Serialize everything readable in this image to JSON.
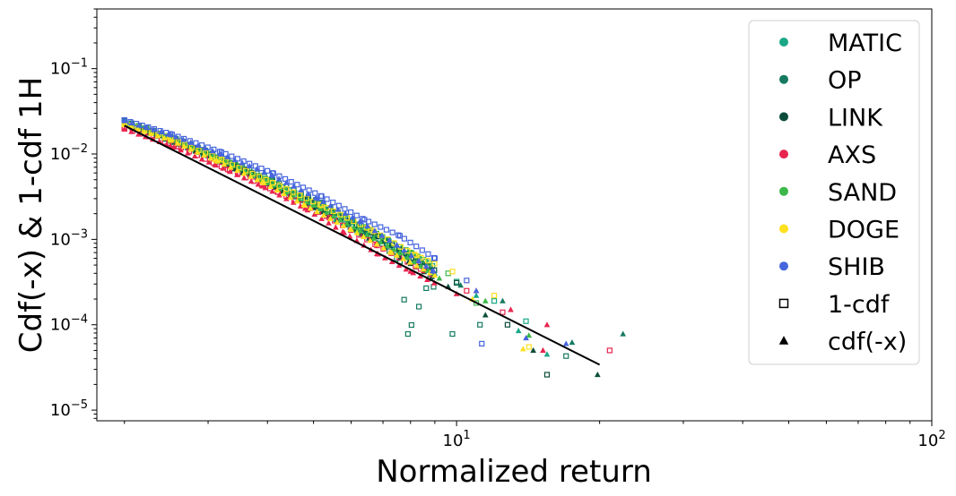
{
  "chart_data": {
    "type": "scatter",
    "title": "",
    "xlabel": "Normalized return",
    "ylabel": "Cdf(-x) & 1-cdf 1H",
    "xscale": "log",
    "yscale": "log",
    "xlim": [
      1.75,
      100
    ],
    "ylim": [
      7.5e-06,
      0.5
    ],
    "x_ticks": [
      {
        "value": 10,
        "base": "10",
        "exp": "1"
      },
      {
        "value": 100,
        "base": "10",
        "exp": "2"
      }
    ],
    "y_ticks": [
      {
        "value": 1e-05,
        "base": "10",
        "exp": "−5"
      },
      {
        "value": 0.0001,
        "base": "10",
        "exp": "−4"
      },
      {
        "value": 0.001,
        "base": "10",
        "exp": "−3"
      },
      {
        "value": 0.01,
        "base": "10",
        "exp": "−2"
      },
      {
        "value": 0.1,
        "base": "10",
        "exp": "−1"
      }
    ],
    "grid": false,
    "legend_position": "top-right",
    "series": [
      {
        "name": "MATIC",
        "color": "#1aa886",
        "one_minus_cdf": [
          [
            2.0,
            0.024
          ],
          [
            2.4,
            0.0165
          ],
          [
            3.0,
            0.0098
          ],
          [
            3.8,
            0.0054
          ],
          [
            4.8,
            0.0029
          ],
          [
            6.0,
            0.0016
          ],
          [
            7.2,
            0.00095
          ],
          [
            8.6,
            0.00055
          ],
          [
            10.0,
            0.00032
          ],
          [
            12.0,
            0.00019
          ],
          [
            14.0,
            0.00011
          ]
        ],
        "cdf_neg": [
          [
            2.0,
            0.023
          ],
          [
            2.5,
            0.0148
          ],
          [
            3.1,
            0.0088
          ],
          [
            3.9,
            0.0048
          ],
          [
            4.9,
            0.0025
          ],
          [
            6.1,
            0.0013
          ],
          [
            7.5,
            0.0007
          ],
          [
            9.0,
            0.0004
          ],
          [
            11.0,
            0.00022
          ],
          [
            13.5,
            8.5e-05
          ],
          [
            15.5,
            4.5e-05
          ]
        ]
      },
      {
        "name": "OP",
        "color": "#157a5f",
        "one_minus_cdf": [
          [
            2.0,
            0.0245
          ],
          [
            2.5,
            0.016
          ],
          [
            3.2,
            0.0092
          ],
          [
            4.1,
            0.0049
          ],
          [
            5.2,
            0.0027
          ],
          [
            6.5,
            0.0013
          ],
          [
            7.6,
            0.00055
          ],
          [
            8.8,
            0.00035
          ],
          [
            7.9,
            7.8e-05
          ],
          [
            9.8,
            7.8e-05
          ],
          [
            11.2,
            0.0001
          ],
          [
            17.0,
            4.3e-05
          ]
        ],
        "cdf_neg": [
          [
            2.0,
            0.0225
          ],
          [
            2.5,
            0.0142
          ],
          [
            3.2,
            0.0082
          ],
          [
            4.0,
            0.0046
          ],
          [
            5.1,
            0.0024
          ],
          [
            6.4,
            0.0012
          ],
          [
            8.0,
            0.00065
          ],
          [
            10.2,
            0.00029
          ],
          [
            12.5,
            0.00019
          ],
          [
            17.5,
            6.2e-05
          ],
          [
            22.4,
            7.8e-05
          ]
        ]
      },
      {
        "name": "LINK",
        "color": "#0b4d3a",
        "one_minus_cdf": [
          [
            2.0,
            0.023
          ],
          [
            2.6,
            0.0138
          ],
          [
            3.4,
            0.0075
          ],
          [
            4.3,
            0.0041
          ],
          [
            5.5,
            0.0021
          ],
          [
            6.8,
            0.0011
          ],
          [
            8.2,
            0.00058
          ],
          [
            10.0,
            0.00031
          ],
          [
            12.8,
            0.0001
          ],
          [
            15.5,
            2.6e-05
          ]
        ],
        "cdf_neg": [
          [
            2.0,
            0.022
          ],
          [
            2.6,
            0.0132
          ],
          [
            3.3,
            0.0073
          ],
          [
            4.2,
            0.0039
          ],
          [
            5.3,
            0.002
          ],
          [
            6.6,
            0.001
          ],
          [
            8.0,
            0.00052
          ],
          [
            9.6,
            0.00028
          ],
          [
            11.5,
            0.00013
          ],
          [
            14.5,
            5e-05
          ],
          [
            19.8,
            2.6e-05
          ]
        ]
      },
      {
        "name": "AXS",
        "color": "#e8254f",
        "one_minus_cdf": [
          [
            2.0,
            0.02
          ],
          [
            2.6,
            0.0122
          ],
          [
            3.3,
            0.0066
          ],
          [
            4.2,
            0.0036
          ],
          [
            5.4,
            0.0018
          ],
          [
            6.8,
            0.00085
          ],
          [
            8.4,
            0.00045
          ],
          [
            10.5,
            0.00025
          ],
          [
            12.5,
            0.00014
          ],
          [
            21.0,
            5e-05
          ]
        ],
        "cdf_neg": [
          [
            2.0,
            0.0195
          ],
          [
            2.5,
            0.0125
          ],
          [
            3.1,
            0.0075
          ],
          [
            3.9,
            0.0042
          ],
          [
            4.8,
            0.0023
          ],
          [
            5.8,
            0.0012
          ],
          [
            6.8,
            0.00068
          ],
          [
            8.0,
            0.00042
          ],
          [
            10.0,
            0.00023
          ],
          [
            11.0,
            0.00025
          ],
          [
            13.0,
            0.00015
          ],
          [
            15.5,
            0.0001
          ],
          [
            15.2,
            5e-05
          ]
        ]
      },
      {
        "name": "SAND",
        "color": "#3cb84a",
        "one_minus_cdf": [
          [
            2.0,
            0.0235
          ],
          [
            2.5,
            0.0155
          ],
          [
            3.2,
            0.0088
          ],
          [
            4.0,
            0.005
          ],
          [
            5.1,
            0.0026
          ],
          [
            6.4,
            0.0014
          ],
          [
            8.0,
            0.0007
          ],
          [
            9.6,
            0.0004
          ],
          [
            11.0,
            0.00018
          ]
        ],
        "cdf_neg": [
          [
            2.0,
            0.0225
          ],
          [
            2.5,
            0.015
          ],
          [
            3.2,
            0.0084
          ],
          [
            4.0,
            0.0046
          ],
          [
            5.0,
            0.0025
          ],
          [
            6.2,
            0.0013
          ],
          [
            7.6,
            0.0007
          ],
          [
            9.2,
            0.00035
          ],
          [
            11.5,
            0.00019
          ],
          [
            14.2,
            7.5e-05
          ]
        ]
      },
      {
        "name": "DOGE",
        "color": "#ffe020",
        "one_minus_cdf": [
          [
            2.0,
            0.023
          ],
          [
            2.5,
            0.0152
          ],
          [
            3.2,
            0.0086
          ],
          [
            4.1,
            0.0046
          ],
          [
            5.2,
            0.0025
          ],
          [
            6.6,
            0.0013
          ],
          [
            8.2,
            0.00065
          ],
          [
            9.8,
            0.00042
          ],
          [
            12.0,
            0.00022
          ],
          [
            14.2,
            5.5e-05
          ]
        ],
        "cdf_neg": [
          [
            2.0,
            0.022
          ],
          [
            2.5,
            0.0145
          ],
          [
            3.1,
            0.0085
          ],
          [
            3.9,
            0.0047
          ],
          [
            4.8,
            0.0025
          ],
          [
            6.0,
            0.0013
          ],
          [
            7.3,
            0.0007
          ],
          [
            9.0,
            0.00038
          ],
          [
            10.8,
            0.0002
          ],
          [
            13.8,
            5.2e-05
          ]
        ]
      },
      {
        "name": "SHIB",
        "color": "#4665dd",
        "one_minus_cdf": [
          [
            2.0,
            0.025
          ],
          [
            2.5,
            0.0172
          ],
          [
            3.2,
            0.0105
          ],
          [
            4.1,
            0.006
          ],
          [
            5.2,
            0.0032
          ],
          [
            6.4,
            0.0017
          ],
          [
            7.6,
            0.0011
          ],
          [
            9.0,
            0.0006
          ],
          [
            10.5,
            0.00033
          ],
          [
            11.3,
            6e-05
          ]
        ],
        "cdf_neg": [
          [
            2.0,
            0.0245
          ],
          [
            2.5,
            0.0168
          ],
          [
            3.2,
            0.0099
          ],
          [
            4.1,
            0.0056
          ],
          [
            5.1,
            0.003
          ],
          [
            6.3,
            0.0016
          ],
          [
            7.5,
            0.00085
          ],
          [
            8.9,
            0.00043
          ],
          [
            11.0,
            0.00025
          ],
          [
            14.0,
            7e-05
          ],
          [
            17.0,
            6e-05
          ]
        ]
      }
    ],
    "markers": [
      {
        "name": "1-cdf",
        "shape": "square-open"
      },
      {
        "name": "cdf(-x)",
        "shape": "triangle-filled"
      }
    ],
    "fit_line": {
      "color": "#000000",
      "x": [
        2.0,
        20.0
      ],
      "y": [
        0.0215,
        3.4e-05
      ]
    }
  }
}
